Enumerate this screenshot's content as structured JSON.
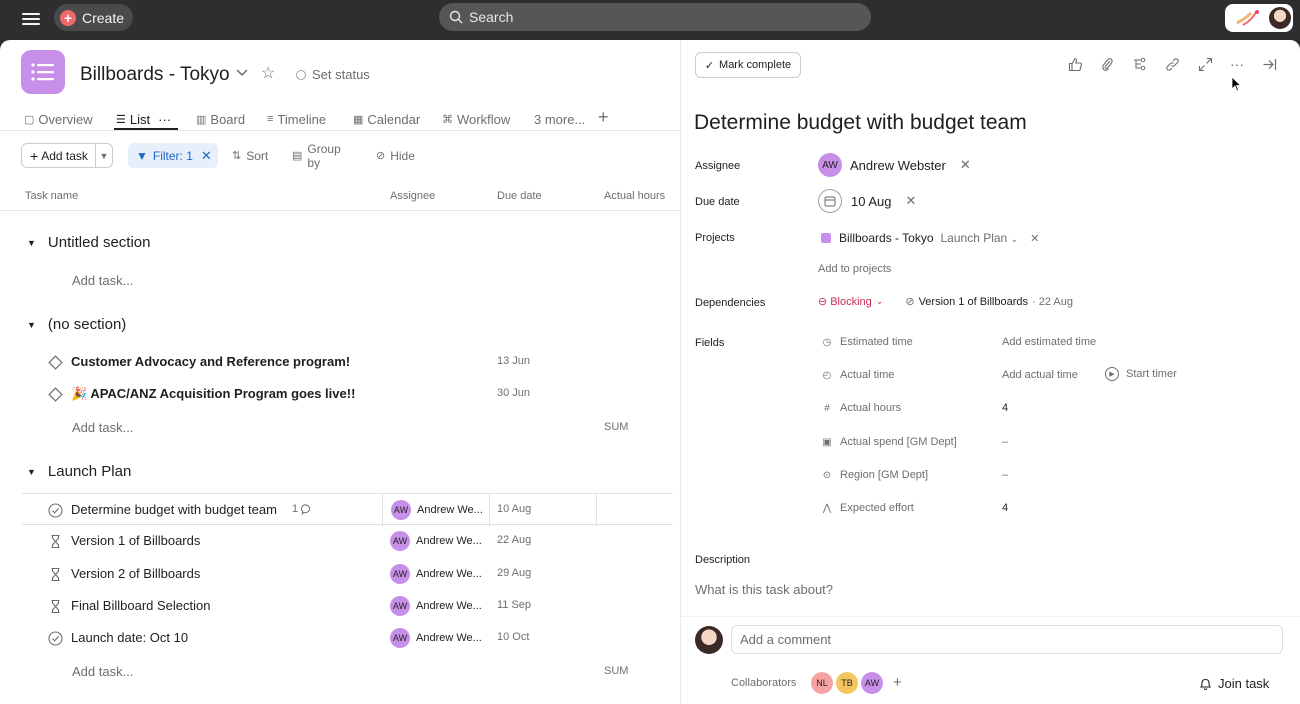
{
  "topbar": {
    "create_label": "Create",
    "search_placeholder": "Search"
  },
  "project": {
    "title": "Billboards - Tokyo",
    "set_status": "Set status",
    "color": "#c78fe8"
  },
  "tabs": [
    {
      "label": "Overview",
      "icon": "overview-icon"
    },
    {
      "label": "List",
      "icon": "list-icon",
      "active": true
    },
    {
      "label": "Board",
      "icon": "board-icon"
    },
    {
      "label": "Timeline",
      "icon": "timeline-icon"
    },
    {
      "label": "Calendar",
      "icon": "calendar-icon"
    },
    {
      "label": "Workflow",
      "icon": "workflow-icon"
    },
    {
      "label": "3 more..."
    }
  ],
  "toolbar": {
    "add_task": "Add task",
    "filter": "Filter: 1",
    "sort": "Sort",
    "group_by": "Group by",
    "hide": "Hide"
  },
  "columns": {
    "task_name": "Task name",
    "assignee": "Assignee",
    "due_date": "Due date",
    "actual_hours": "Actual hours"
  },
  "sections": [
    {
      "name": "Untitled section",
      "add_task": "Add task..."
    },
    {
      "name": "(no section)",
      "add_task": "Add task...",
      "sum": "SUM",
      "tasks": [
        {
          "name": "Customer Advocacy and Reference program!",
          "due": "13 Jun"
        },
        {
          "name": "🎉 APAC/ANZ Acquisition Program goes live!!",
          "due": "30 Jun"
        }
      ]
    },
    {
      "name": "Launch Plan",
      "add_task": "Add task...",
      "sum": "SUM",
      "tasks": [
        {
          "name": "Determine budget with budget team",
          "comments": "1",
          "assignee": "Andrew We...",
          "initials": "AW",
          "due": "10 Aug"
        },
        {
          "name": "Version 1 of Billboards",
          "assignee": "Andrew We...",
          "initials": "AW",
          "due": "22 Aug"
        },
        {
          "name": "Version 2 of Billboards",
          "assignee": "Andrew We...",
          "initials": "AW",
          "due": "29 Aug"
        },
        {
          "name": "Final Billboard Selection",
          "assignee": "Andrew We...",
          "initials": "AW",
          "due": "11 Sep"
        },
        {
          "name": "Launch date: Oct 10",
          "assignee": "Andrew We...",
          "initials": "AW",
          "due": "10 Oct"
        }
      ]
    }
  ],
  "detail": {
    "mark_complete": "Mark complete",
    "title": "Determine budget with budget team",
    "labels": {
      "assignee": "Assignee",
      "due_date": "Due date",
      "projects": "Projects",
      "dependencies": "Dependencies",
      "fields": "Fields",
      "description": "Description"
    },
    "assignee": {
      "name": "Andrew Webster",
      "initials": "AW"
    },
    "due_date": "10 Aug",
    "project": {
      "name": "Billboards - Tokyo",
      "section": "Launch Plan"
    },
    "add_to_projects": "Add to projects",
    "dependency": {
      "status": "Blocking",
      "task": "Version 1 of Billboards",
      "date": "· 22 Aug"
    },
    "fields": [
      {
        "name": "Estimated time",
        "icon": "clock-icon",
        "value": "Add estimated time"
      },
      {
        "name": "Actual time",
        "icon": "stopwatch-icon",
        "value": "Add actual time",
        "extra": "Start timer"
      },
      {
        "name": "Actual hours",
        "icon": "hash-icon",
        "value": "4"
      },
      {
        "name": "Actual spend [GM Dept]",
        "icon": "money-icon",
        "value": "–"
      },
      {
        "name": "Region [GM Dept]",
        "icon": "dropdown-circle-icon",
        "value": "–"
      },
      {
        "name": "Expected effort",
        "icon": "effort-icon",
        "value": "4"
      }
    ],
    "description_placeholder": "What is this task about?",
    "comment_placeholder": "Add a comment",
    "collaborators_label": "Collaborators",
    "collaborators": [
      {
        "initials": "NL",
        "color": "#f8a3a3"
      },
      {
        "initials": "TB",
        "color": "#f5c660"
      },
      {
        "initials": "AW",
        "color": "#c78fe8"
      }
    ],
    "join_task": "Join task"
  }
}
